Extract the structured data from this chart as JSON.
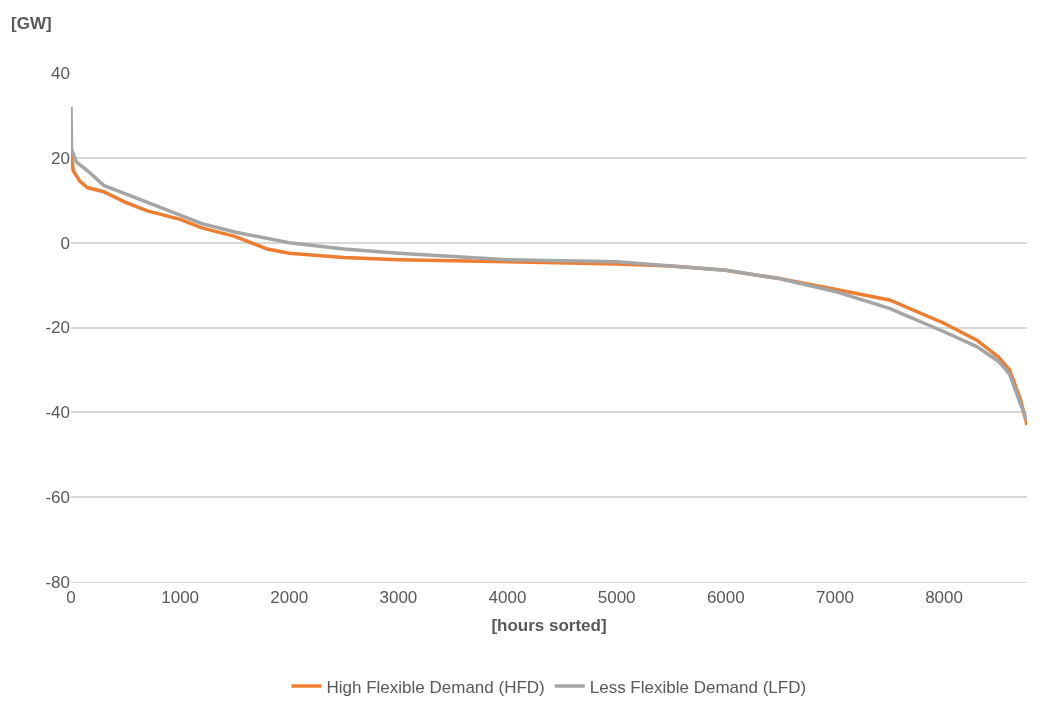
{
  "chart_data": {
    "type": "line",
    "ylabel": "[GW]",
    "xlabel": "[hours sorted]",
    "xlim": [
      0,
      8760
    ],
    "xticks": [
      0,
      1000,
      2000,
      3000,
      4000,
      5000,
      6000,
      7000,
      8000
    ],
    "ylim": [
      -80,
      40
    ],
    "yticks": [
      -80,
      -60,
      -40,
      -20,
      0,
      20,
      40
    ],
    "grid": "y",
    "legend": "bottom",
    "marker": "none",
    "line_style": "solid",
    "series": [
      {
        "name": "High Flexible Demand (HFD)",
        "color": "#ed7d31",
        "x": [
          0,
          20,
          80,
          150,
          300,
          500,
          700,
          1000,
          1200,
          1500,
          1800,
          2000,
          2500,
          3000,
          4000,
          5000,
          5500,
          6000,
          6500,
          7000,
          7500,
          8000,
          8300,
          8500,
          8600,
          8700,
          8760
        ],
        "values": [
          21,
          17,
          14.5,
          13,
          12,
          9.5,
          7.5,
          5.5,
          3.5,
          1.5,
          -1.5,
          -2.5,
          -3.5,
          -4,
          -4.5,
          -5,
          -5.5,
          -6.5,
          -8.5,
          -11,
          -13.5,
          -19,
          -23,
          -27,
          -30,
          -37,
          -43
        ]
      },
      {
        "name": "Less Flexible Demand (LFD)",
        "color": "#a5a5a5",
        "x": [
          0,
          5,
          50,
          150,
          300,
          500,
          700,
          1000,
          1200,
          1500,
          2000,
          2500,
          3000,
          4000,
          5000,
          5500,
          6000,
          6500,
          7000,
          7500,
          8000,
          8300,
          8500,
          8600,
          8700,
          8760
        ],
        "values": [
          32,
          22,
          19,
          17,
          13.5,
          11.5,
          9.5,
          6.5,
          4.5,
          2.5,
          0,
          -1.5,
          -2.5,
          -4,
          -4.5,
          -5.5,
          -6.5,
          -8.5,
          -11.5,
          -15.5,
          -21,
          -24.5,
          -28,
          -31,
          -38,
          -42
        ]
      }
    ]
  }
}
